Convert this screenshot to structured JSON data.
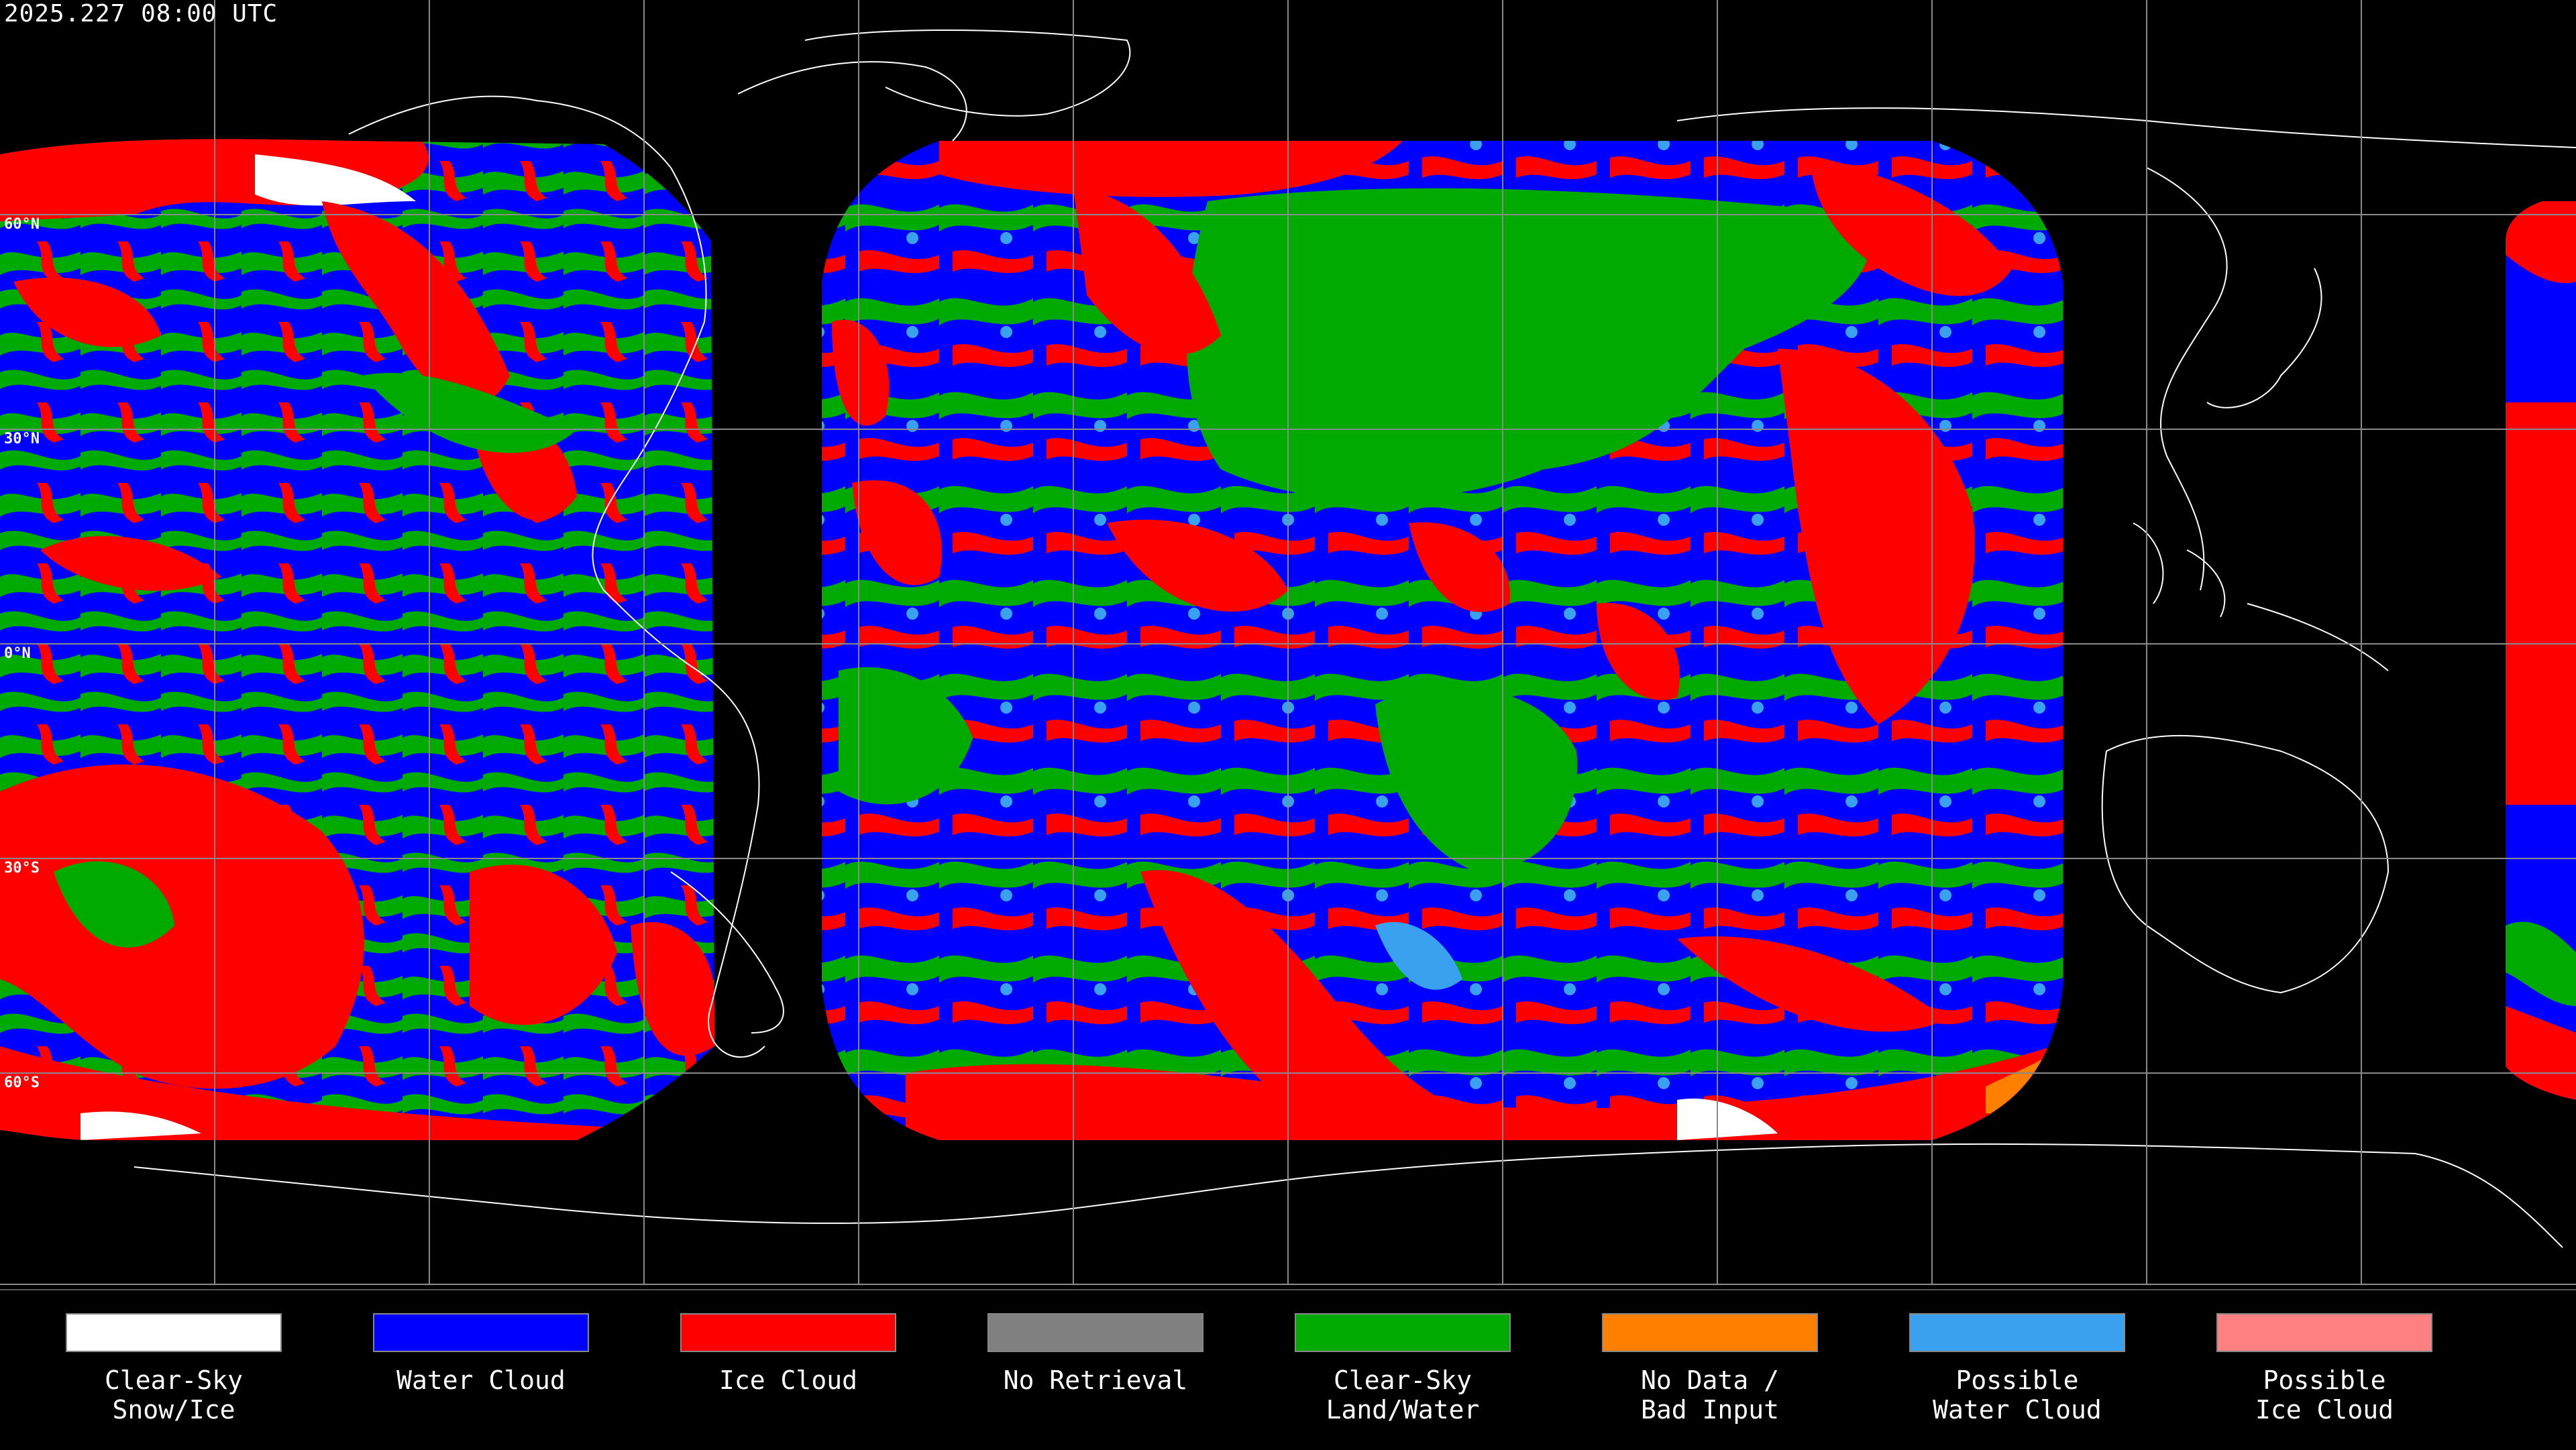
{
  "timestamp": "2025.227 08:00 UTC",
  "latitude_labels": [
    "60°N",
    "30°N",
    "0°N",
    "30°S",
    "60°S"
  ],
  "colors": {
    "clear_sky_snow_ice": "#ffffff",
    "water_cloud": "#0000ff",
    "ice_cloud": "#ff0000",
    "no_retrieval": "#808080",
    "clear_sky_land_water": "#00aa00",
    "no_data_bad_input": "#ff8000",
    "possible_water_cloud": "#3aa0f0",
    "possible_ice_cloud": "#ff8080",
    "background": "#000000",
    "gridlines": "#8a8a8a",
    "coastlines": "#ffffff"
  },
  "legend": [
    {
      "label": "Clear-Sky\nSnow/Ice",
      "color": "#ffffff",
      "icon": "white-swatch"
    },
    {
      "label": "Water Cloud",
      "color": "#0000ff",
      "icon": "blue-swatch"
    },
    {
      "label": "Ice Cloud",
      "color": "#ff0000",
      "icon": "red-swatch"
    },
    {
      "label": "No Retrieval",
      "color": "#808080",
      "icon": "gray-swatch"
    },
    {
      "label": "Clear-Sky\nLand/Water",
      "color": "#00aa00",
      "icon": "green-swatch"
    },
    {
      "label": "No Data /\nBad Input",
      "color": "#ff8000",
      "icon": "orange-swatch"
    },
    {
      "label": "Possible\nWater Cloud",
      "color": "#3aa0f0",
      "icon": "light-blue-swatch"
    },
    {
      "label": "Possible\nIce Cloud",
      "color": "#ff8080",
      "icon": "pink-swatch"
    }
  ]
}
